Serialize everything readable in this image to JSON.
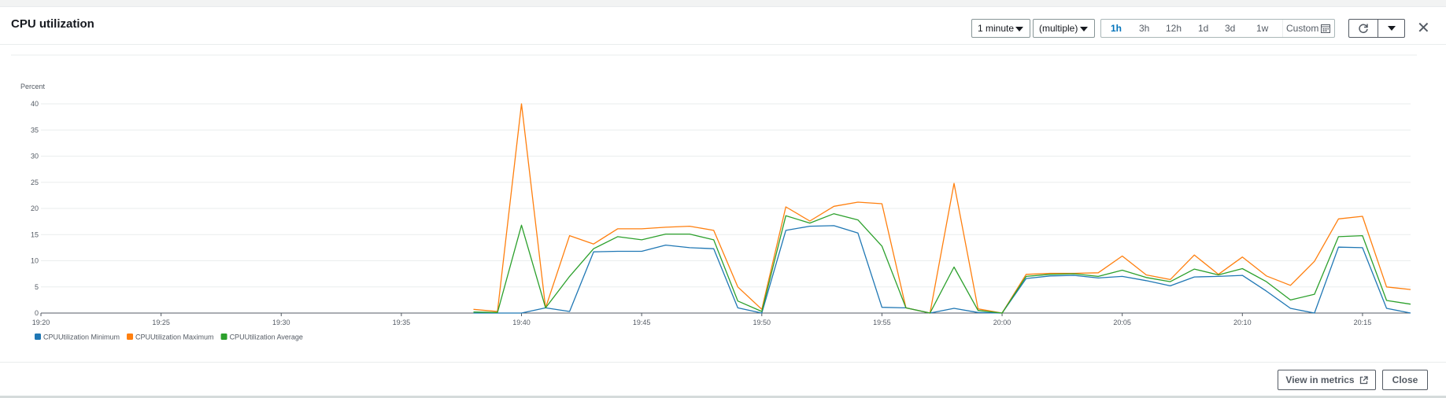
{
  "header": {
    "title": "CPU utilization",
    "period": "1 minute",
    "statistic": "(multiple)",
    "ranges": [
      "1h",
      "3h",
      "12h",
      "1d",
      "3d",
      "1w"
    ],
    "active_range": "1h",
    "custom_label": "Custom"
  },
  "footer": {
    "view_in_metrics": "View in metrics",
    "close": "Close"
  },
  "chart_data": {
    "type": "line",
    "ylabel": "Percent",
    "ylim": [
      0,
      40
    ],
    "yticks": [
      0,
      5,
      10,
      15,
      20,
      25,
      30,
      35,
      40
    ],
    "x_start": "19:20",
    "x_end": "20:17",
    "xticks": [
      "19:20",
      "19:25",
      "19:30",
      "19:35",
      "19:40",
      "19:45",
      "19:50",
      "19:55",
      "20:00",
      "20:05",
      "20:10",
      "20:15"
    ],
    "x": [
      "19:38",
      "19:39",
      "19:40",
      "19:41",
      "19:42",
      "19:43",
      "19:44",
      "19:45",
      "19:46",
      "19:47",
      "19:48",
      "19:49",
      "19:50",
      "19:51",
      "19:52",
      "19:53",
      "19:54",
      "19:55",
      "19:56",
      "19:57",
      "19:58",
      "19:59",
      "20:00",
      "20:01",
      "20:02",
      "20:03",
      "20:04",
      "20:05",
      "20:06",
      "20:07",
      "20:08",
      "20:09",
      "20:10",
      "20:11",
      "20:12",
      "20:13",
      "20:14",
      "20:15",
      "20:16",
      "20:17"
    ],
    "series": [
      {
        "name": "CPUUtilization Minimum",
        "color": "#1f77b4",
        "values": [
          0,
          0,
          0,
          1,
          0.3,
          11.7,
          11.8,
          11.8,
          13,
          12.5,
          12.3,
          1,
          0,
          15.8,
          16.6,
          16.7,
          15.3,
          1.1,
          1,
          0,
          0.9,
          0.1,
          0,
          6.6,
          7.1,
          7.2,
          6.7,
          7,
          6.2,
          5.2,
          6.9,
          7,
          7.2,
          4.2,
          0.9,
          0,
          12.6,
          12.5,
          0.9,
          0
        ]
      },
      {
        "name": "CPUUtilization Maximum",
        "color": "#ff7f0e",
        "values": [
          0.7,
          0.3,
          40,
          1,
          14.8,
          13.2,
          16.1,
          16.1,
          16.4,
          16.6,
          15.8,
          5,
          0.7,
          20.3,
          17.6,
          20.4,
          21.2,
          20.9,
          1,
          0,
          24.8,
          0.8,
          0,
          7.4,
          7.6,
          7.6,
          7.7,
          10.9,
          7.3,
          6.4,
          11.1,
          7.4,
          10.7,
          7.1,
          5.3,
          9.9,
          18,
          18.5,
          5,
          4.5
        ]
      },
      {
        "name": "CPUUtilization Average",
        "color": "#2ca02c",
        "values": [
          0.2,
          0.1,
          16.8,
          1,
          7,
          12.3,
          14.6,
          14,
          15.1,
          15.1,
          14,
          2.3,
          0.3,
          18.6,
          17.2,
          19,
          17.8,
          12.8,
          1,
          0,
          8.8,
          0.5,
          0,
          7,
          7.4,
          7.5,
          7,
          8.2,
          6.8,
          6,
          8.4,
          7.3,
          8.5,
          6,
          2.5,
          3.6,
          14.6,
          14.8,
          2.4,
          1.7
        ]
      }
    ]
  }
}
